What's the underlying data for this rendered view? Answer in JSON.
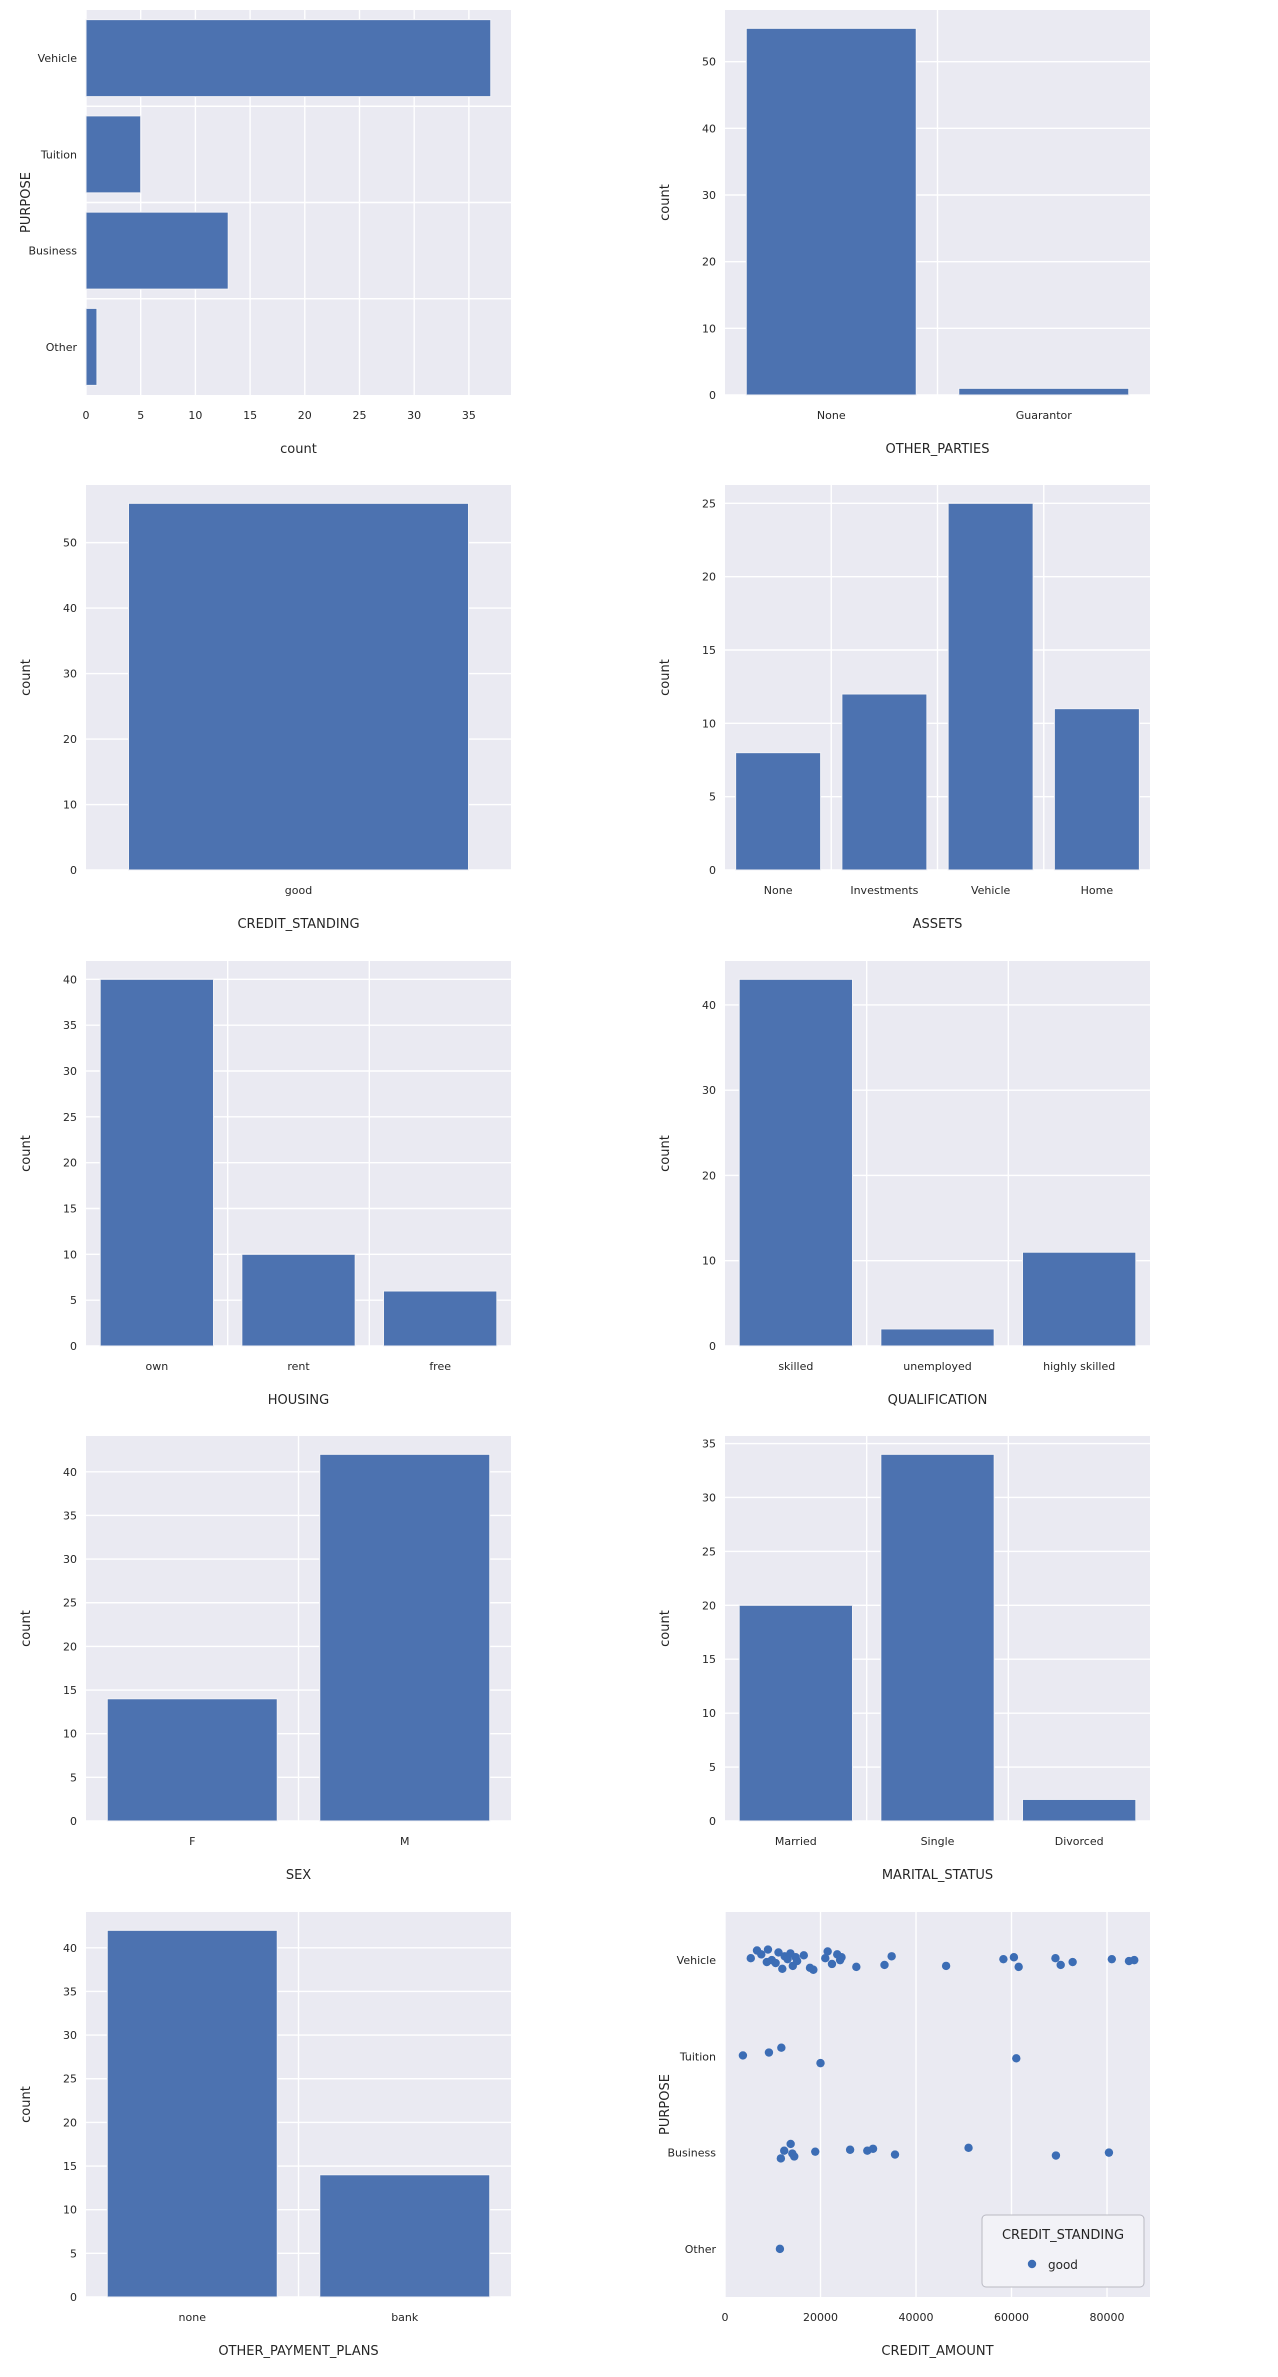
{
  "figure": {
    "background": "#ffffff",
    "axes_background": "#eaeaf2",
    "grid_color": "#ffffff",
    "bar_color": "#4c72b0",
    "dot_color": "#3c6db5",
    "text_color": "#262626",
    "legend_bg": "#f2f2f7",
    "legend_border": "#b9b9c2"
  },
  "chart_data": [
    {
      "id": "purpose",
      "type": "bar",
      "orientation": "horizontal",
      "ylabel": "PURPOSE",
      "xlabel": "count",
      "categories": [
        "Vehicle",
        "Tuition",
        "Business",
        "Other"
      ],
      "values": [
        37,
        5,
        13,
        1
      ],
      "value_ticks": [
        0,
        5,
        10,
        15,
        20,
        25,
        30,
        35
      ],
      "value_max": 38.85,
      "grid": "on"
    },
    {
      "id": "other-parties",
      "type": "bar",
      "orientation": "vertical",
      "ylabel": "count",
      "xlabel": "OTHER_PARTIES",
      "categories": [
        "None",
        "Guarantor"
      ],
      "values": [
        55,
        1
      ],
      "value_ticks": [
        0,
        10,
        20,
        30,
        40,
        50
      ],
      "value_max": 57.75,
      "grid": "on"
    },
    {
      "id": "credit-standing",
      "type": "bar",
      "orientation": "vertical",
      "ylabel": "count",
      "xlabel": "CREDIT_STANDING",
      "categories": [
        "good"
      ],
      "values": [
        56
      ],
      "value_ticks": [
        0,
        10,
        20,
        30,
        40,
        50
      ],
      "value_max": 58.8,
      "grid": "on"
    },
    {
      "id": "assets",
      "type": "bar",
      "orientation": "vertical",
      "ylabel": "count",
      "xlabel": "ASSETS",
      "categories": [
        "None",
        "Investments",
        "Vehicle",
        "Home"
      ],
      "values": [
        8,
        12,
        25,
        11
      ],
      "value_ticks": [
        0,
        5,
        10,
        15,
        20,
        25
      ],
      "value_max": 26.25,
      "grid": "on"
    },
    {
      "id": "housing",
      "type": "bar",
      "orientation": "vertical",
      "ylabel": "count",
      "xlabel": "HOUSING",
      "categories": [
        "own",
        "rent",
        "free"
      ],
      "values": [
        40,
        10,
        6
      ],
      "value_ticks": [
        0,
        5,
        10,
        15,
        20,
        25,
        30,
        35,
        40
      ],
      "value_max": 42,
      "grid": "on"
    },
    {
      "id": "qualification",
      "type": "bar",
      "orientation": "vertical",
      "ylabel": "count",
      "xlabel": "QUALIFICATION",
      "categories": [
        "skilled",
        "unemployed",
        "highly skilled"
      ],
      "values": [
        43,
        2,
        11
      ],
      "value_ticks": [
        0,
        10,
        20,
        30,
        40
      ],
      "value_max": 45.15,
      "grid": "on"
    },
    {
      "id": "sex",
      "type": "bar",
      "orientation": "vertical",
      "ylabel": "count",
      "xlabel": "SEX",
      "categories": [
        "F",
        "M"
      ],
      "values": [
        14,
        42
      ],
      "value_ticks": [
        0,
        5,
        10,
        15,
        20,
        25,
        30,
        35,
        40
      ],
      "value_max": 44.1,
      "grid": "on"
    },
    {
      "id": "marital-status",
      "type": "bar",
      "orientation": "vertical",
      "ylabel": "count",
      "xlabel": "MARITAL_STATUS",
      "categories": [
        "Married",
        "Single",
        "Divorced"
      ],
      "values": [
        20,
        34,
        2
      ],
      "value_ticks": [
        0,
        5,
        10,
        15,
        20,
        25,
        30,
        35
      ],
      "value_max": 35.7,
      "grid": "on"
    },
    {
      "id": "other-payment-plans",
      "type": "bar",
      "orientation": "vertical",
      "ylabel": "count",
      "xlabel": "OTHER_PAYMENT_PLANS",
      "categories": [
        "none",
        "bank"
      ],
      "values": [
        42,
        14
      ],
      "value_ticks": [
        0,
        5,
        10,
        15,
        20,
        25,
        30,
        35,
        40
      ],
      "value_max": 44.1,
      "grid": "on"
    },
    {
      "id": "credit-amount-by-purpose",
      "type": "scatter",
      "ylabel": "PURPOSE",
      "xlabel": "CREDIT_AMOUNT",
      "categories": [
        "Vehicle",
        "Tuition",
        "Business",
        "Other"
      ],
      "x_ticks": [
        0,
        20000,
        40000,
        60000,
        80000
      ],
      "x_max": 89000,
      "grid": "on",
      "legend": {
        "title": "CREDIT_STANDING",
        "entries": [
          "good"
        ],
        "position": "lower right"
      },
      "series": [
        {
          "name": "good",
          "points_format": "[category, credit_amount, jitter_fraction]",
          "points": [
            [
              "Vehicle",
              5400,
              -0.02
            ],
            [
              "Vehicle",
              6700,
              -0.1
            ],
            [
              "Vehicle",
              7600,
              -0.06
            ],
            [
              "Vehicle",
              8750,
              0.02
            ],
            [
              "Vehicle",
              9000,
              -0.11
            ],
            [
              "Vehicle",
              9800,
              0.0
            ],
            [
              "Vehicle",
              10600,
              0.03
            ],
            [
              "Vehicle",
              11200,
              -0.08
            ],
            [
              "Vehicle",
              12000,
              0.09
            ],
            [
              "Vehicle",
              12500,
              -0.04
            ],
            [
              "Vehicle",
              13100,
              -0.01
            ],
            [
              "Vehicle",
              13700,
              -0.07
            ],
            [
              "Vehicle",
              14200,
              0.06
            ],
            [
              "Vehicle",
              14800,
              -0.03
            ],
            [
              "Vehicle",
              15100,
              0.01
            ],
            [
              "Vehicle",
              16500,
              -0.05
            ],
            [
              "Vehicle",
              17800,
              0.08
            ],
            [
              "Vehicle",
              18500,
              0.1
            ],
            [
              "Vehicle",
              21000,
              -0.02
            ],
            [
              "Vehicle",
              21500,
              -0.09
            ],
            [
              "Vehicle",
              22400,
              0.04
            ],
            [
              "Vehicle",
              23500,
              -0.06
            ],
            [
              "Vehicle",
              24100,
              0.0
            ],
            [
              "Vehicle",
              24400,
              -0.03
            ],
            [
              "Vehicle",
              27500,
              0.07
            ],
            [
              "Vehicle",
              33400,
              0.05
            ],
            [
              "Vehicle",
              34900,
              -0.04
            ],
            [
              "Vehicle",
              46300,
              0.06
            ],
            [
              "Vehicle",
              58300,
              -0.01
            ],
            [
              "Vehicle",
              60500,
              -0.03
            ],
            [
              "Vehicle",
              61500,
              0.07
            ],
            [
              "Vehicle",
              69200,
              -0.02
            ],
            [
              "Vehicle",
              70300,
              0.05
            ],
            [
              "Vehicle",
              72800,
              0.02
            ],
            [
              "Vehicle",
              81000,
              -0.01
            ],
            [
              "Vehicle",
              84600,
              0.01
            ],
            [
              "Vehicle",
              85700,
              0.0
            ],
            [
              "Tuition",
              3750,
              -0.01
            ],
            [
              "Tuition",
              9200,
              -0.04
            ],
            [
              "Tuition",
              11800,
              -0.09
            ],
            [
              "Tuition",
              20000,
              0.07
            ],
            [
              "Tuition",
              61000,
              0.02
            ],
            [
              "Business",
              11700,
              0.06
            ],
            [
              "Business",
              12400,
              -0.02
            ],
            [
              "Business",
              13750,
              -0.09
            ],
            [
              "Business",
              14100,
              0.01
            ],
            [
              "Business",
              14500,
              0.04
            ],
            [
              "Business",
              18900,
              -0.01
            ],
            [
              "Business",
              26200,
              -0.03
            ],
            [
              "Business",
              29800,
              -0.02
            ],
            [
              "Business",
              31000,
              -0.04
            ],
            [
              "Business",
              35600,
              0.02
            ],
            [
              "Business",
              51000,
              -0.05
            ],
            [
              "Business",
              69300,
              0.03
            ],
            [
              "Business",
              80400,
              0.0
            ],
            [
              "Other",
              11500,
              0.0
            ]
          ]
        }
      ]
    }
  ]
}
